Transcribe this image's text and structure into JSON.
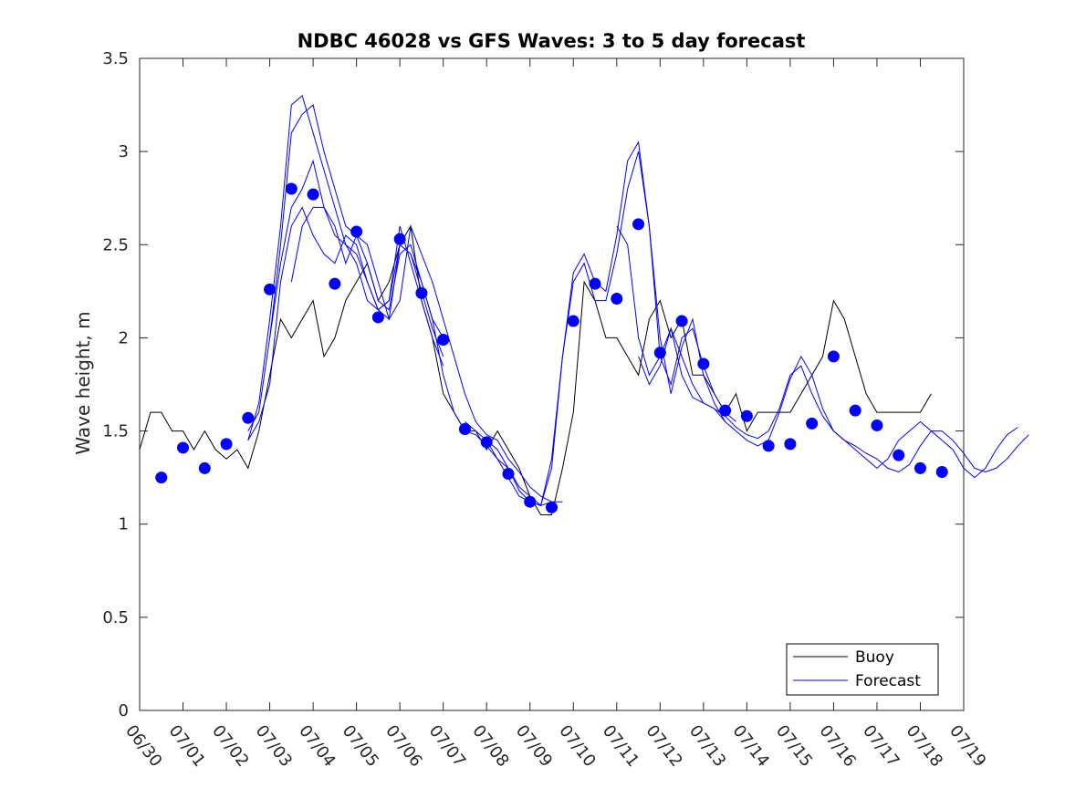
{
  "chart_data": {
    "type": "line",
    "title": "NDBC 46028 vs GFS Waves: 3 to 5 day forecast",
    "xlabel": "",
    "ylabel": "Wave height, m",
    "x_tick_labels": [
      "06/30",
      "07/01",
      "07/02",
      "07/03",
      "07/04",
      "07/05",
      "07/06",
      "07/07",
      "07/08",
      "07/09",
      "07/10",
      "07/11",
      "07/12",
      "07/13",
      "07/14",
      "07/15",
      "07/16",
      "07/17",
      "07/18",
      "07/19"
    ],
    "y_ticks": [
      0,
      0.5,
      1,
      1.5,
      2,
      2.5,
      3,
      3.5
    ],
    "y_tick_labels": [
      "0",
      "0.5",
      "1",
      "1.5",
      "2",
      "2.5",
      "3",
      "3.5"
    ],
    "xlim": [
      "06/30",
      "07/19"
    ],
    "ylim": [
      0,
      3.5
    ],
    "legend": {
      "position": "bottom-right",
      "entries": [
        "Buoy",
        "Forecast"
      ]
    },
    "colors": {
      "buoy": "#000000",
      "forecast": "#0000ff",
      "markers": "#0000ff"
    },
    "series": [
      {
        "name": "Buoy",
        "x_day_offsets_from_06_30": [
          0.0,
          0.25,
          0.5,
          0.75,
          1.0,
          1.25,
          1.5,
          1.75,
          2.0,
          2.25,
          2.5,
          2.75,
          3.0,
          3.25,
          3.5,
          3.75,
          4.0,
          4.25,
          4.5,
          4.75,
          5.0,
          5.25,
          5.5,
          5.75,
          6.0,
          6.25,
          6.5,
          6.75,
          7.0,
          7.25,
          7.5,
          7.75,
          8.0,
          8.25,
          8.5,
          8.75,
          9.0,
          9.25,
          9.5,
          9.75,
          10.0,
          10.25,
          10.5,
          10.75,
          11.0,
          11.25,
          11.5,
          11.75,
          12.0,
          12.25,
          12.5,
          12.75,
          13.0,
          13.25,
          13.5,
          13.75,
          14.0,
          14.25,
          14.5,
          14.75,
          15.0,
          15.25,
          15.5,
          15.75,
          16.0,
          16.25,
          16.5,
          16.75,
          17.0,
          17.25,
          17.5,
          17.75,
          18.0,
          18.25
        ],
        "values": [
          1.4,
          1.6,
          1.6,
          1.5,
          1.5,
          1.4,
          1.5,
          1.4,
          1.35,
          1.4,
          1.3,
          1.5,
          1.8,
          2.1,
          2.0,
          2.1,
          2.2,
          1.9,
          2.0,
          2.2,
          2.3,
          2.4,
          2.2,
          2.3,
          2.5,
          2.6,
          2.2,
          2.0,
          1.7,
          1.6,
          1.5,
          1.5,
          1.4,
          1.5,
          1.4,
          1.3,
          1.15,
          1.05,
          1.05,
          1.3,
          1.6,
          2.3,
          2.2,
          2.0,
          2.0,
          1.9,
          1.8,
          2.1,
          2.2,
          2.0,
          2.1,
          1.8,
          1.8,
          1.7,
          1.6,
          1.7,
          1.5,
          1.6,
          1.6,
          1.6,
          1.6,
          1.7,
          1.8,
          1.9,
          2.2,
          2.1,
          1.9,
          1.7,
          1.6,
          1.6,
          1.6,
          1.6,
          1.6,
          1.7
        ]
      },
      {
        "name": "Forecast",
        "runs": [
          {
            "start": 2.5,
            "step": 0.25,
            "values": [
              1.45,
              1.55,
              1.75,
              2.3,
              2.6,
              2.7,
              2.55,
              2.45,
              2.4,
              2.55,
              2.5,
              2.3,
              2.15,
              2.2,
              2.6,
              2.4,
              2.2,
              2.0,
              1.85
            ]
          },
          {
            "start": 2.5,
            "step": 0.25,
            "values": [
              1.5,
              1.6,
              2.0,
              2.5,
              3.1,
              3.2,
              3.25,
              3.0,
              2.8,
              2.6,
              2.55,
              2.4,
              2.2,
              2.15,
              2.45,
              2.5,
              2.3,
              2.1,
              2.0
            ]
          },
          {
            "start": 2.5,
            "step": 0.25,
            "values": [
              1.45,
              1.65,
              2.1,
              2.6,
              3.25,
              3.3,
              3.1,
              2.9,
              2.7,
              2.5,
              2.45,
              2.3,
              2.15,
              2.1,
              2.5,
              2.45,
              2.25,
              2.05,
              1.9
            ]
          },
          {
            "start": 3.0,
            "step": 0.25,
            "values": [
              2.0,
              2.4,
              2.7,
              2.8,
              2.95,
              2.7,
              2.55,
              2.5,
              2.4,
              2.2,
              2.15,
              2.2,
              2.5,
              2.45,
              2.3,
              2.1,
              1.8,
              1.6,
              1.5,
              1.48,
              1.42,
              1.35,
              1.3,
              1.18,
              1.12,
              1.1,
              1.12
            ]
          },
          {
            "start": 3.5,
            "step": 0.25,
            "values": [
              2.3,
              2.6,
              2.7,
              2.7,
              2.6,
              2.4,
              2.55,
              2.5,
              2.3,
              2.1,
              2.2,
              2.6,
              2.45,
              2.3,
              2.1,
              1.9,
              1.7,
              1.55,
              1.48,
              1.45,
              1.35,
              1.28,
              1.2,
              1.15,
              1.12,
              1.12
            ]
          },
          {
            "start": 7.5,
            "step": 0.25,
            "values": [
              1.55,
              1.5,
              1.45,
              1.35,
              1.25,
              1.15,
              1.12,
              1.1,
              1.35,
              1.9,
              2.3,
              2.4,
              2.2,
              2.2,
              2.45,
              2.8,
              3.0,
              2.6,
              2.0,
              1.7,
              1.95,
              2.1,
              1.8,
              1.65,
              1.55
            ]
          },
          {
            "start": 8.0,
            "step": 0.25,
            "values": [
              1.45,
              1.4,
              1.3,
              1.2,
              1.15,
              1.1,
              1.3,
              1.9,
              2.35,
              2.45,
              2.3,
              2.25,
              2.55,
              2.95,
              3.05,
              2.6,
              1.9,
              1.75,
              2.0,
              2.05,
              1.85,
              1.7,
              1.6,
              1.55
            ]
          },
          {
            "start": 11.0,
            "step": 0.25,
            "values": [
              2.6,
              2.5,
              2.0,
              1.8,
              1.9,
              2.05,
              1.8,
              1.68,
              1.65,
              1.62,
              1.55,
              1.5,
              1.45,
              1.42,
              1.45,
              1.6,
              1.78,
              1.9,
              1.8,
              1.62,
              1.5,
              1.45,
              1.4,
              1.35,
              1.3,
              1.35,
              1.45,
              1.5,
              1.55,
              1.5,
              1.45,
              1.4,
              1.3,
              1.25,
              1.3,
              1.4,
              1.48,
              1.52
            ]
          },
          {
            "start": 11.5,
            "step": 0.25,
            "values": [
              1.9,
              1.75,
              1.85,
              2.05,
              1.9,
              1.75,
              1.65,
              1.62,
              1.58,
              1.52,
              1.48,
              1.46,
              1.5,
              1.62,
              1.8,
              1.85,
              1.7,
              1.58,
              1.5,
              1.45,
              1.42,
              1.38,
              1.35,
              1.3,
              1.28,
              1.32,
              1.42,
              1.5,
              1.5,
              1.45,
              1.38,
              1.3,
              1.28,
              1.3,
              1.35,
              1.42,
              1.48
            ]
          }
        ],
        "marker_x_day_offsets_from_06_30": [
          0.5,
          1.0,
          1.5,
          2.0,
          2.5,
          3.0,
          3.5,
          4.0,
          4.5,
          5.0,
          5.5,
          6.0,
          6.5,
          7.0,
          7.5,
          8.0,
          8.5,
          9.0,
          9.5,
          10.0,
          10.5,
          11.0,
          11.5,
          12.0,
          12.5,
          13.0,
          13.5,
          14.0,
          14.5,
          15.0,
          15.5,
          16.0,
          16.5,
          17.0,
          17.5,
          18.0,
          18.5
        ],
        "marker_values": [
          1.25,
          1.41,
          1.3,
          1.43,
          1.57,
          2.26,
          2.8,
          2.77,
          2.29,
          2.57,
          2.11,
          2.53,
          2.24,
          1.99,
          1.51,
          1.44,
          1.27,
          1.12,
          1.09,
          2.09,
          2.29,
          2.21,
          2.61,
          1.92,
          2.09,
          1.86,
          1.61,
          1.58,
          1.42,
          1.43,
          1.54,
          1.9,
          1.61,
          1.53,
          1.37,
          1.3,
          1.28
        ]
      }
    ]
  }
}
